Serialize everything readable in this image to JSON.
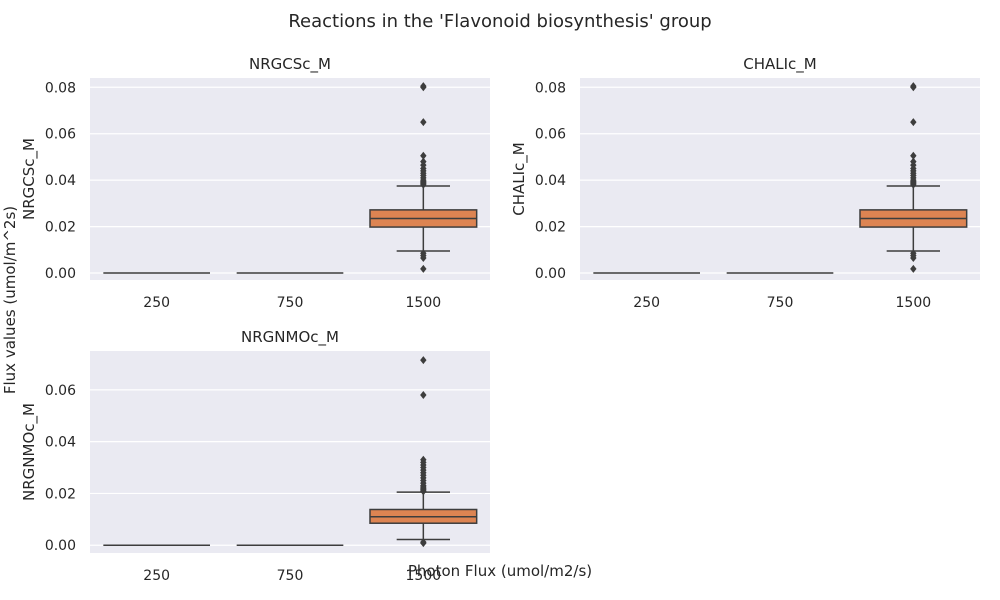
{
  "figure": {
    "title": "Reactions in the 'Flavonoid biosynthesis' group",
    "xlabel": "Photon Flux (umol/m2/s)",
    "ylabel": "Flux values (umol/m^2s)"
  },
  "colors": {
    "background": "#eaeaf2",
    "grid": "#ffffff",
    "box_low": "#4c72b0",
    "box_mid": "#55a868",
    "box_high": "#dd8452",
    "lines": "#3d3d3d"
  },
  "chart_data": [
    {
      "type": "box",
      "title": "NRGCSc_M",
      "ylabel": "NRGCSc_M",
      "categories": [
        "250",
        "750",
        "1500"
      ],
      "ylim": [
        -0.003,
        0.084
      ],
      "yticks": [
        0.0,
        0.02,
        0.04,
        0.06,
        0.08
      ],
      "ytick_labels": [
        "0.00",
        "0.02",
        "0.04",
        "0.06",
        "0.08"
      ],
      "boxes": [
        {
          "category": "250",
          "min": 0,
          "q1": 0,
          "median": 0,
          "q3": 0,
          "max": 0,
          "fliers": []
        },
        {
          "category": "750",
          "min": 0,
          "q1": 0,
          "median": 0,
          "q3": 0,
          "max": 0,
          "fliers": []
        },
        {
          "category": "1500",
          "min": 0.0095,
          "q1": 0.0198,
          "median": 0.0235,
          "q3": 0.0272,
          "max": 0.0375,
          "fliers": [
            0.0018,
            0.0065,
            0.0075,
            0.0085,
            0.038,
            0.0385,
            0.039,
            0.0395,
            0.04,
            0.041,
            0.042,
            0.043,
            0.044,
            0.045,
            0.0465,
            0.048,
            0.0505,
            0.065,
            0.08,
            0.0805
          ]
        }
      ]
    },
    {
      "type": "box",
      "title": "CHALIc_M",
      "ylabel": "CHALIc_M",
      "categories": [
        "250",
        "750",
        "1500"
      ],
      "ylim": [
        -0.003,
        0.084
      ],
      "yticks": [
        0.0,
        0.02,
        0.04,
        0.06,
        0.08
      ],
      "ytick_labels": [
        "0.00",
        "0.02",
        "0.04",
        "0.06",
        "0.08"
      ],
      "boxes": [
        {
          "category": "250",
          "min": 0,
          "q1": 0,
          "median": 0,
          "q3": 0,
          "max": 0,
          "fliers": []
        },
        {
          "category": "750",
          "min": 0,
          "q1": 0,
          "median": 0,
          "q3": 0,
          "max": 0,
          "fliers": []
        },
        {
          "category": "1500",
          "min": 0.0095,
          "q1": 0.0198,
          "median": 0.0235,
          "q3": 0.0272,
          "max": 0.0375,
          "fliers": [
            0.0018,
            0.0065,
            0.0075,
            0.0085,
            0.038,
            0.0385,
            0.039,
            0.0395,
            0.04,
            0.041,
            0.042,
            0.043,
            0.044,
            0.045,
            0.0465,
            0.048,
            0.0505,
            0.065,
            0.08,
            0.0805
          ]
        }
      ]
    },
    {
      "type": "box",
      "title": "NRGNMOc_M",
      "ylabel": "NRGNMOc_M",
      "categories": [
        "250",
        "750",
        "1500"
      ],
      "ylim": [
        -0.003,
        0.075
      ],
      "yticks": [
        0.0,
        0.02,
        0.04,
        0.06
      ],
      "ytick_labels": [
        "0.00",
        "0.02",
        "0.04",
        "0.06"
      ],
      "boxes": [
        {
          "category": "250",
          "min": 0,
          "q1": 0,
          "median": 0,
          "q3": 0,
          "max": 0,
          "fliers": []
        },
        {
          "category": "750",
          "min": 0,
          "q1": 0,
          "median": 0,
          "q3": 0,
          "max": 0,
          "fliers": []
        },
        {
          "category": "1500",
          "min": 0.0022,
          "q1": 0.0085,
          "median": 0.011,
          "q3": 0.0138,
          "max": 0.0205,
          "fliers": [
            0.0008,
            0.0012,
            0.0208,
            0.021,
            0.0215,
            0.022,
            0.0225,
            0.023,
            0.024,
            0.025,
            0.026,
            0.027,
            0.028,
            0.029,
            0.03,
            0.031,
            0.032,
            0.033,
            0.058,
            0.0715
          ]
        }
      ]
    }
  ]
}
